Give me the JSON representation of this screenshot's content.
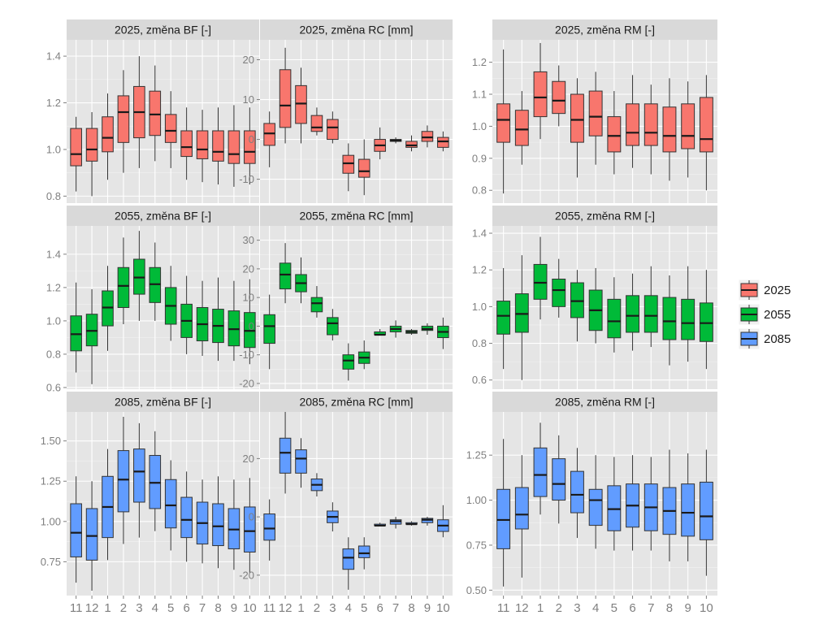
{
  "chart_data": {
    "type": "boxplot",
    "x_categories": [
      "11",
      "12",
      "1",
      "2",
      "3",
      "4",
      "5",
      "6",
      "7",
      "8",
      "9",
      "10"
    ],
    "legend": {
      "position": "right",
      "entries": [
        {
          "label": "2025",
          "color": "#F8766D"
        },
        {
          "label": "2055",
          "color": "#00BA38"
        },
        {
          "label": "2085",
          "color": "#619CFF"
        }
      ]
    },
    "panels": [
      {
        "title": "2025, změna BF [-]",
        "scenario": "2025",
        "color": "#F8766D",
        "ylim": [
          0.77,
          1.47
        ],
        "yticks": [
          {
            "v": 0.8,
            "label": "0.8"
          },
          {
            "v": 1.0,
            "label": "1.0"
          },
          {
            "v": 1.2,
            "label": "1.2"
          },
          {
            "v": 1.4,
            "label": "1.4"
          }
        ],
        "boxes": [
          [
            0.82,
            0.93,
            0.98,
            1.09,
            1.14
          ],
          [
            0.8,
            0.95,
            1.0,
            1.09,
            1.16
          ],
          [
            0.87,
            0.99,
            1.05,
            1.14,
            1.24
          ],
          [
            0.9,
            1.03,
            1.16,
            1.23,
            1.34
          ],
          [
            0.92,
            1.05,
            1.16,
            1.27,
            1.4
          ],
          [
            0.95,
            1.06,
            1.15,
            1.25,
            1.36
          ],
          [
            0.92,
            1.03,
            1.08,
            1.15,
            1.25
          ],
          [
            0.87,
            0.97,
            1.01,
            1.08,
            1.18
          ],
          [
            0.86,
            0.96,
            1.0,
            1.08,
            1.17
          ],
          [
            0.85,
            0.95,
            0.99,
            1.08,
            1.18
          ],
          [
            0.84,
            0.94,
            0.98,
            1.08,
            1.19
          ],
          [
            0.85,
            0.94,
            0.99,
            1.08,
            1.18
          ]
        ]
      },
      {
        "title": "2025, změna RC [mm]",
        "scenario": "2025",
        "color": "#F8766D",
        "ylim": [
          -16,
          25
        ],
        "yticks": [
          {
            "v": -10,
            "label": "-10"
          },
          {
            "v": 0,
            "label": "0"
          },
          {
            "v": 10,
            "label": "10"
          },
          {
            "v": 20,
            "label": "20"
          }
        ],
        "boxes": [
          [
            -7,
            -1.5,
            1.5,
            4,
            7
          ],
          [
            -1,
            3,
            8.5,
            17.5,
            23
          ],
          [
            -1,
            4,
            9,
            13.5,
            18
          ],
          [
            1,
            2,
            3,
            6,
            8
          ],
          [
            -1,
            0,
            3,
            5,
            7
          ],
          [
            -13,
            -8.5,
            -6,
            -4,
            -1
          ],
          [
            -14,
            -9.5,
            -8,
            -5,
            0
          ],
          [
            -5,
            -3,
            -1.5,
            0,
            3
          ],
          [
            -1,
            -0.5,
            -0.3,
            0,
            0.5
          ],
          [
            -3,
            -2,
            -1.5,
            -0.5,
            1
          ],
          [
            -2,
            -0.5,
            0.5,
            2,
            3.5
          ],
          [
            -3,
            -2,
            -0.5,
            0.5,
            2
          ]
        ]
      },
      {
        "title": "2025, změna RM [-]",
        "scenario": "2025",
        "color": "#F8766D",
        "ylim": [
          0.76,
          1.27
        ],
        "yticks": [
          {
            "v": 0.8,
            "label": "0.8"
          },
          {
            "v": 0.9,
            "label": "0.9"
          },
          {
            "v": 1.0,
            "label": "1.0"
          },
          {
            "v": 1.1,
            "label": "1.1"
          },
          {
            "v": 1.2,
            "label": "1.2"
          }
        ],
        "boxes": [
          [
            0.79,
            0.95,
            1.02,
            1.07,
            1.24
          ],
          [
            0.88,
            0.94,
            0.99,
            1.05,
            1.11
          ],
          [
            0.96,
            1.03,
            1.09,
            1.17,
            1.26
          ],
          [
            1.0,
            1.04,
            1.08,
            1.14,
            1.19
          ],
          [
            0.84,
            0.95,
            1.02,
            1.1,
            1.15
          ],
          [
            0.88,
            0.97,
            1.03,
            1.11,
            1.17
          ],
          [
            0.85,
            0.92,
            0.97,
            1.03,
            1.11
          ],
          [
            0.87,
            0.94,
            0.98,
            1.07,
            1.16
          ],
          [
            0.85,
            0.94,
            0.98,
            1.07,
            1.13
          ],
          [
            0.83,
            0.92,
            0.97,
            1.06,
            1.15
          ],
          [
            0.84,
            0.93,
            0.97,
            1.07,
            1.14
          ],
          [
            0.8,
            0.92,
            0.96,
            1.09,
            1.16
          ]
        ]
      },
      {
        "title": "2055, změna BF [-]",
        "scenario": "2055",
        "color": "#00BA38",
        "ylim": [
          0.59,
          1.57
        ],
        "yticks": [
          {
            "v": 0.6,
            "label": "0.6"
          },
          {
            "v": 0.8,
            "label": "0.8"
          },
          {
            "v": 1.0,
            "label": "1.0"
          },
          {
            "v": 1.2,
            "label": "1.2"
          },
          {
            "v": 1.4,
            "label": "1.4"
          }
        ],
        "boxes": [
          [
            0.69,
            0.82,
            0.92,
            1.03,
            1.23
          ],
          [
            0.62,
            0.85,
            0.94,
            1.04,
            1.19
          ],
          [
            0.82,
            0.97,
            1.08,
            1.18,
            1.33
          ],
          [
            0.98,
            1.08,
            1.21,
            1.32,
            1.5
          ],
          [
            1.0,
            1.16,
            1.26,
            1.37,
            1.54
          ],
          [
            1.0,
            1.11,
            1.22,
            1.32,
            1.47
          ],
          [
            0.88,
            0.98,
            1.09,
            1.2,
            1.33
          ],
          [
            0.8,
            0.9,
            1.0,
            1.1,
            1.27
          ],
          [
            0.79,
            0.88,
            0.98,
            1.08,
            1.24
          ],
          [
            0.76,
            0.87,
            0.97,
            1.07,
            1.26
          ],
          [
            0.76,
            0.85,
            0.95,
            1.06,
            1.24
          ],
          [
            0.74,
            0.84,
            0.94,
            1.05,
            1.25
          ]
        ]
      },
      {
        "title": "2055, změna RC [mm]",
        "scenario": "2055",
        "color": "#00BA38",
        "ylim": [
          -22,
          35
        ],
        "yticks": [
          {
            "v": -20,
            "label": "-20"
          },
          {
            "v": -10,
            "label": "-10"
          },
          {
            "v": 0,
            "label": "0"
          },
          {
            "v": 10,
            "label": "10"
          },
          {
            "v": 20,
            "label": "20"
          },
          {
            "v": 30,
            "label": "30"
          }
        ],
        "boxes": [
          [
            -15,
            -6,
            0,
            4,
            11
          ],
          [
            8,
            13,
            18,
            22,
            29
          ],
          [
            8,
            12,
            15,
            18,
            24
          ],
          [
            3,
            5,
            8,
            10,
            14
          ],
          [
            -5,
            -3,
            1,
            3,
            6
          ],
          [
            -19,
            -15,
            -12,
            -10,
            -6
          ],
          [
            -15,
            -13,
            -11,
            -9,
            -5
          ],
          [
            -3,
            -3,
            -3,
            -2,
            -1
          ],
          [
            -4,
            -2,
            -1,
            0,
            2
          ],
          [
            -3,
            -2.5,
            -2,
            -1.5,
            -1
          ],
          [
            -3,
            -1.5,
            -1,
            0,
            1
          ],
          [
            -8,
            -4,
            -2,
            0,
            3
          ]
        ]
      },
      {
        "title": "2055, změna RM [-]",
        "scenario": "2055",
        "color": "#00BA38",
        "ylim": [
          0.55,
          1.44
        ],
        "yticks": [
          {
            "v": 0.6,
            "label": "0.6"
          },
          {
            "v": 0.8,
            "label": "0.8"
          },
          {
            "v": 1.0,
            "label": "1.0"
          },
          {
            "v": 1.2,
            "label": "1.2"
          },
          {
            "v": 1.4,
            "label": "1.4"
          }
        ],
        "boxes": [
          [
            0.66,
            0.85,
            0.95,
            1.03,
            1.21
          ],
          [
            0.6,
            0.86,
            0.96,
            1.07,
            1.28
          ],
          [
            0.93,
            1.04,
            1.13,
            1.23,
            1.38
          ],
          [
            0.94,
            1.0,
            1.09,
            1.15,
            1.26
          ],
          [
            0.81,
            0.94,
            1.03,
            1.13,
            1.2
          ],
          [
            0.8,
            0.87,
            0.98,
            1.09,
            1.21
          ],
          [
            0.75,
            0.83,
            0.92,
            1.04,
            1.16
          ],
          [
            0.76,
            0.86,
            0.95,
            1.06,
            1.18
          ],
          [
            0.78,
            0.86,
            0.95,
            1.06,
            1.22
          ],
          [
            0.68,
            0.82,
            0.92,
            1.05,
            1.17
          ],
          [
            0.7,
            0.82,
            0.91,
            1.04,
            1.22
          ],
          [
            0.66,
            0.81,
            0.91,
            1.02,
            1.2
          ]
        ]
      },
      {
        "title": "2085, změna BF [-]",
        "scenario": "2085",
        "color": "#619CFF",
        "ylim": [
          0.54,
          1.68
        ],
        "yticks": [
          {
            "v": 0.75,
            "label": "0.75"
          },
          {
            "v": 1.0,
            "label": "1.00"
          },
          {
            "v": 1.25,
            "label": "1.25"
          },
          {
            "v": 1.5,
            "label": "1.50"
          }
        ],
        "boxes": [
          [
            0.62,
            0.78,
            0.93,
            1.11,
            1.28
          ],
          [
            0.57,
            0.76,
            0.91,
            1.08,
            1.25
          ],
          [
            0.76,
            0.9,
            1.09,
            1.28,
            1.45
          ],
          [
            0.86,
            1.06,
            1.26,
            1.44,
            1.65
          ],
          [
            0.9,
            1.12,
            1.31,
            1.45,
            1.61
          ],
          [
            0.94,
            1.08,
            1.24,
            1.41,
            1.56
          ],
          [
            0.82,
            0.96,
            1.1,
            1.26,
            1.38
          ],
          [
            0.75,
            0.9,
            1.01,
            1.15,
            1.31
          ],
          [
            0.74,
            0.86,
            0.99,
            1.12,
            1.26
          ],
          [
            0.71,
            0.85,
            0.97,
            1.11,
            1.28
          ],
          [
            0.7,
            0.83,
            0.95,
            1.08,
            1.26
          ],
          [
            0.68,
            0.81,
            0.94,
            1.09,
            1.27
          ]
        ]
      },
      {
        "title": "2085, změna RC [mm]",
        "scenario": "2085",
        "color": "#619CFF",
        "ylim": [
          -27,
          36
        ],
        "yticks": [
          {
            "v": -20,
            "label": "-20"
          },
          {
            "v": 0,
            "label": "0"
          },
          {
            "v": 20,
            "label": "20"
          }
        ],
        "boxes": [
          [
            -15,
            -8,
            -4,
            1,
            6
          ],
          [
            8,
            15,
            22,
            27,
            36
          ],
          [
            10,
            15,
            20,
            23,
            27
          ],
          [
            7,
            9,
            11,
            13,
            15
          ],
          [
            -5,
            -2,
            0,
            2,
            5
          ],
          [
            -25,
            -18,
            -14,
            -11,
            -7
          ],
          [
            -18,
            -14,
            -12.5,
            -10,
            -7
          ],
          [
            -3,
            -3,
            -3,
            -2.5,
            -2
          ],
          [
            -4,
            -2.5,
            -1.5,
            -1,
            0
          ],
          [
            -3,
            -2.5,
            -2.5,
            -2,
            -1.5
          ],
          [
            -3,
            -2,
            -1,
            -0.5,
            0
          ],
          [
            -7,
            -5,
            -3,
            -1,
            4
          ]
        ]
      },
      {
        "title": "2085, změna RM [-]",
        "scenario": "2085",
        "color": "#619CFF",
        "ylim": [
          0.47,
          1.49
        ],
        "yticks": [
          {
            "v": 0.5,
            "label": "0.50"
          },
          {
            "v": 0.75,
            "label": "0.75"
          },
          {
            "v": 1.0,
            "label": "1.00"
          },
          {
            "v": 1.25,
            "label": "1.25"
          }
        ],
        "boxes": [
          [
            0.52,
            0.73,
            0.89,
            1.06,
            1.34
          ],
          [
            0.57,
            0.84,
            0.92,
            1.07,
            1.25
          ],
          [
            0.92,
            1.02,
            1.14,
            1.29,
            1.43
          ],
          [
            0.87,
            1.0,
            1.09,
            1.23,
            1.36
          ],
          [
            0.79,
            0.93,
            1.03,
            1.16,
            1.29
          ],
          [
            0.73,
            0.86,
            1.0,
            1.06,
            1.25
          ],
          [
            0.72,
            0.83,
            0.95,
            1.08,
            1.24
          ],
          [
            0.72,
            0.85,
            0.97,
            1.09,
            1.25
          ],
          [
            0.72,
            0.83,
            0.96,
            1.09,
            1.24
          ],
          [
            0.66,
            0.81,
            0.94,
            1.07,
            1.28
          ],
          [
            0.66,
            0.8,
            0.93,
            1.09,
            1.26
          ],
          [
            0.58,
            0.78,
            0.91,
            1.1,
            1.28
          ]
        ]
      }
    ]
  }
}
